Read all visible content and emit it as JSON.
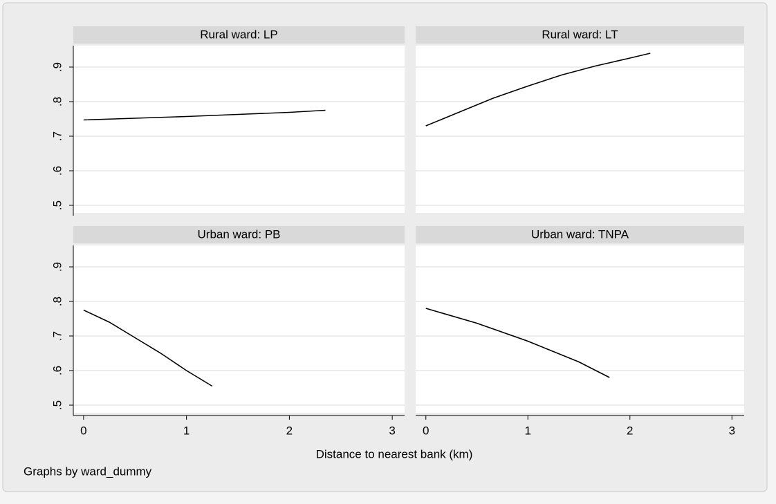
{
  "chart_data": [
    {
      "type": "line",
      "title": "Rural ward: LP",
      "x": [
        0,
        0.5,
        1,
        1.5,
        2,
        2.35
      ],
      "values": [
        0.747,
        0.752,
        0.757,
        0.763,
        0.769,
        0.775
      ],
      "color": "#000000",
      "xlim": [
        -0.1,
        3.12
      ],
      "ylim": [
        0.478,
        0.962
      ],
      "yticks": [
        {
          "value": 0.5,
          "label": ".5"
        },
        {
          "value": 0.6,
          "label": ".6"
        },
        {
          "value": 0.7,
          "label": ".7"
        },
        {
          "value": 0.8,
          "label": ".8"
        },
        {
          "value": 0.9,
          "label": ".9"
        }
      ],
      "grid": true
    },
    {
      "type": "line",
      "title": "Rural ward: LT",
      "x": [
        0,
        0.33,
        0.66,
        1,
        1.33,
        1.66,
        2,
        2.2
      ],
      "values": [
        0.73,
        0.77,
        0.81,
        0.845,
        0.877,
        0.903,
        0.926,
        0.94
      ],
      "color": "#000000",
      "xlim": [
        -0.1,
        3.12
      ],
      "ylim": [
        0.478,
        0.962
      ],
      "grid": true
    },
    {
      "type": "line",
      "title": "Urban ward: PB",
      "x": [
        0,
        0.25,
        0.5,
        0.75,
        1,
        1.25
      ],
      "values": [
        0.775,
        0.74,
        0.695,
        0.65,
        0.6,
        0.555
      ],
      "color": "#000000",
      "xlim": [
        -0.1,
        3.12
      ],
      "ylim": [
        0.478,
        0.962
      ],
      "xticks": [
        0,
        1,
        2,
        3
      ],
      "yticks": [
        {
          "value": 0.5,
          "label": ".5"
        },
        {
          "value": 0.6,
          "label": ".6"
        },
        {
          "value": 0.7,
          "label": ".7"
        },
        {
          "value": 0.8,
          "label": ".8"
        },
        {
          "value": 0.9,
          "label": ".9"
        }
      ],
      "grid": true
    },
    {
      "type": "line",
      "title": "Urban ward: TNPA",
      "x": [
        0,
        0.5,
        1,
        1.5,
        1.8
      ],
      "values": [
        0.78,
        0.737,
        0.685,
        0.625,
        0.58
      ],
      "color": "#000000",
      "xlim": [
        -0.1,
        3.12
      ],
      "ylim": [
        0.478,
        0.962
      ],
      "xticks": [
        0,
        1,
        2,
        3
      ],
      "grid": true
    }
  ],
  "x_label": "Distance to nearest bank (km)",
  "note": "Graphs by ward_dummy"
}
